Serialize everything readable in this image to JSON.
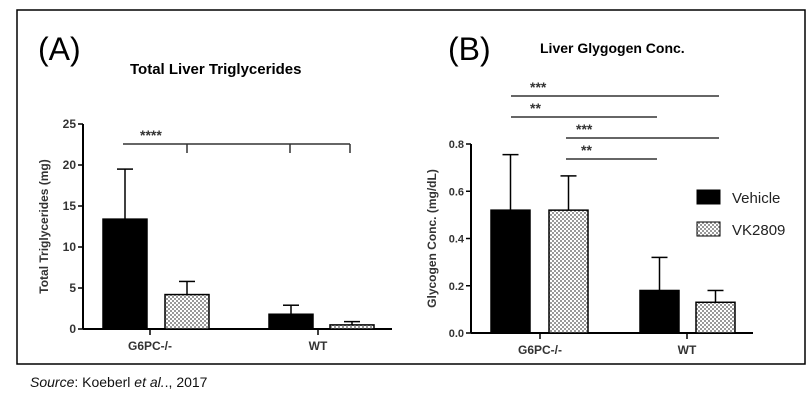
{
  "chart_data": [
    {
      "panel_label": "(A)",
      "type": "bar",
      "title": "Total Liver Triglycerides",
      "ylabel": "Total Triglycerides (mg)",
      "xlabel": "",
      "ylim": [
        0,
        25
      ],
      "yticks": [
        "0",
        "5",
        "10",
        "15",
        "20",
        "25"
      ],
      "categories": [
        "G6PC-/-",
        "WT"
      ],
      "series": [
        {
          "name": "Vehicle",
          "values": [
            13.4,
            1.8
          ],
          "error_upper": [
            19.5,
            2.9
          ],
          "fill": "#000000"
        },
        {
          "name": "VK2809",
          "values": [
            4.2,
            0.5
          ],
          "error_upper": [
            5.8,
            0.9
          ],
          "fill": "checkered"
        }
      ],
      "significance": [
        {
          "label": "****",
          "groups": "G6PC-/- Vehicle vs all"
        }
      ]
    },
    {
      "panel_label": "(B)",
      "type": "bar",
      "title": "Liver Glygogen Conc.",
      "ylabel": "Glycogen Conc. (mg/dL)",
      "xlabel": "",
      "ylim": [
        0,
        0.8
      ],
      "yticks": [
        "0.0",
        "0.2",
        "0.4",
        "0.6",
        "0.8"
      ],
      "categories": [
        "G6PC-/-",
        "WT"
      ],
      "series": [
        {
          "name": "Vehicle",
          "values": [
            0.52,
            0.18
          ],
          "error_upper": [
            0.755,
            0.32
          ],
          "fill": "#000000"
        },
        {
          "name": "VK2809",
          "values": [
            0.52,
            0.13
          ],
          "error_upper": [
            0.665,
            0.18
          ],
          "fill": "checkered"
        }
      ],
      "legend": {
        "placement": "right",
        "entries": [
          "Vehicle",
          "VK2809"
        ]
      },
      "significance": [
        {
          "label": "***",
          "groups": "G6PC-/- Vehicle vs WT VK2809"
        },
        {
          "label": "**",
          "groups": "G6PC-/- Vehicle vs WT Vehicle"
        },
        {
          "label": "***",
          "groups": "G6PC-/- VK2809 vs WT VK2809"
        },
        {
          "label": "**",
          "groups": "G6PC-/- VK2809 vs WT Vehicle"
        }
      ]
    }
  ],
  "source": {
    "prefix": "Source",
    "text": ": Koeberl ",
    "etal": "et al.",
    "year": "., 2017"
  }
}
